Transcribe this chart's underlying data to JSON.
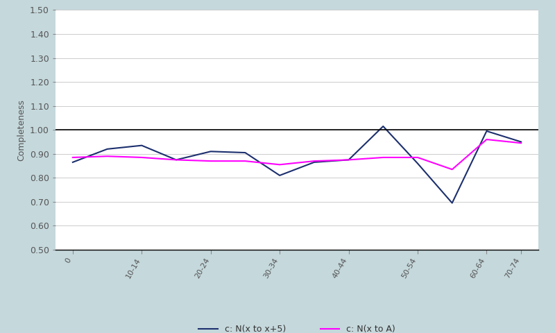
{
  "x_positions": [
    0,
    1,
    2,
    3,
    4,
    5,
    6,
    7,
    8,
    9,
    10,
    11,
    12,
    13
  ],
  "x_tick_positions": [
    0,
    2,
    4,
    6,
    8,
    10,
    12,
    13
  ],
  "x_tick_labels": [
    "0",
    "10-14",
    "20-24",
    "30-34",
    "40-44",
    "50-54",
    "60-64",
    "70-74"
  ],
  "series1_values": [
    0.865,
    0.92,
    0.935,
    0.875,
    0.91,
    0.905,
    0.81,
    0.865,
    0.875,
    1.015,
    0.86,
    0.695,
    0.995,
    0.95
  ],
  "series2_values": [
    0.885,
    0.89,
    0.885,
    0.875,
    0.87,
    0.87,
    0.855,
    0.87,
    0.875,
    0.885,
    0.885,
    0.835,
    0.96,
    0.945
  ],
  "series1_color": "#1c2f6e",
  "series2_color": "#ff00ff",
  "series1_label": "c: N(x to x+5)",
  "series2_label": "c: N(x to A)",
  "ylabel": "Completeness",
  "ylim": [
    0.5,
    1.5
  ],
  "yticks": [
    0.5,
    0.6,
    0.7,
    0.8,
    0.9,
    1.0,
    1.1,
    1.2,
    1.3,
    1.4,
    1.5
  ],
  "background_color": "#c5d8dc",
  "plot_background": "#ffffff",
  "grid_color": "#cccccc",
  "linewidth": 1.5
}
